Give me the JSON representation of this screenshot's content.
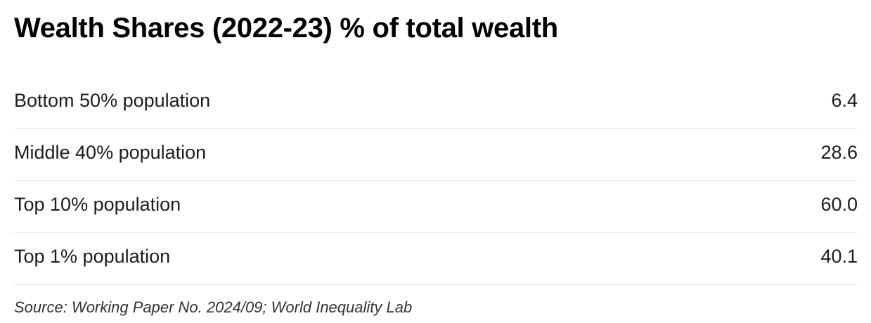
{
  "chart_data": {
    "type": "table",
    "title": "Wealth Shares (2022-23) % of total wealth",
    "rows": [
      {
        "label": "Bottom 50% population",
        "value": "6.4"
      },
      {
        "label": "Middle 40% population",
        "value": "28.6"
      },
      {
        "label": "Top 10% population",
        "value": "60.0"
      },
      {
        "label": "Top 1% population",
        "value": "40.1"
      }
    ],
    "source": "Source: Working Paper No. 2024/09; World Inequality Lab"
  }
}
